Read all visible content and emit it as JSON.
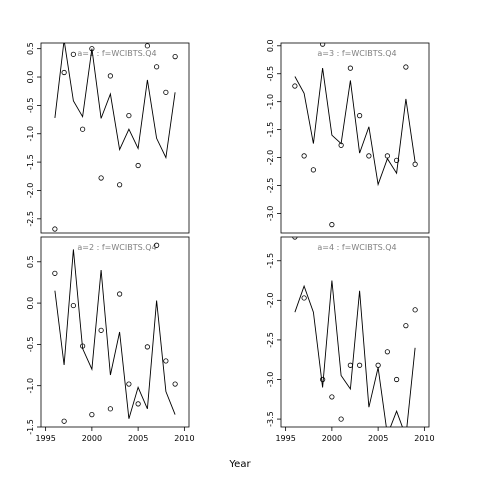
{
  "chart_data": {
    "type": "line",
    "xlabel": "Year",
    "xlim": [
      1994.5,
      2010.5
    ],
    "xticks": [
      1995,
      2000,
      2005,
      2010
    ],
    "panels": [
      {
        "label": "a=1  :  f=WCIBTS.Q4",
        "ylim": [
          -2.75,
          0.6
        ],
        "yticks": [
          -2.5,
          -2.0,
          -1.5,
          -1.0,
          -0.5,
          0.0,
          0.5
        ],
        "ytick_labels": [
          "-2.5",
          "-2.0",
          "-1.5",
          "-1.0",
          "-0.5",
          "0.0",
          "0.5"
        ],
        "years": [
          1996,
          1997,
          1998,
          1999,
          2000,
          2001,
          2002,
          2003,
          2004,
          2005,
          2006,
          2007,
          2008,
          2009
        ],
        "fitted": [
          -0.72,
          0.65,
          -0.42,
          -0.7,
          0.5,
          -0.73,
          -0.3,
          -1.28,
          -0.92,
          -1.26,
          -0.05,
          -1.08,
          -1.42,
          -0.27
        ],
        "observed": [
          -2.68,
          0.08,
          0.4,
          -0.92,
          0.5,
          -1.78,
          0.02,
          -1.9,
          -0.68,
          -1.56,
          0.55,
          0.18,
          -0.27,
          0.36
        ]
      },
      {
        "label": "a=2  :  f=WCIBTS.Q4",
        "ylim": [
          -1.5,
          0.8
        ],
        "yticks": [
          -1.5,
          -1.0,
          -0.5,
          0.0,
          0.5
        ],
        "ytick_labels": [
          "-1.5",
          "-1.0",
          "-0.5",
          "0.0",
          "0.5"
        ],
        "years": [
          1996,
          1997,
          1998,
          1999,
          2000,
          2001,
          2002,
          2003,
          2004,
          2005,
          2006,
          2007,
          2008,
          2009
        ],
        "fitted": [
          0.15,
          -0.75,
          0.65,
          -0.55,
          -0.8,
          0.4,
          -0.87,
          -0.35,
          -1.4,
          -1.02,
          -1.28,
          0.03,
          -1.07,
          -1.35
        ],
        "observed": [
          0.36,
          -1.43,
          -0.03,
          -0.52,
          -1.35,
          -0.33,
          -1.28,
          0.11,
          -0.98,
          -1.22,
          -0.53,
          0.7,
          -0.7,
          -0.98
        ]
      },
      {
        "label": "a=3  :  f=WCIBTS.Q4",
        "ylim": [
          -3.35,
          0.05
        ],
        "yticks": [
          -3.0,
          -2.5,
          -2.0,
          -1.5,
          -1.0,
          -0.5,
          0.0
        ],
        "ytick_labels": [
          "-3.0",
          "-2.5",
          "-2.0",
          "-1.5",
          "-1.0",
          "-0.5",
          "0.0"
        ],
        "years": [
          1996,
          1997,
          1998,
          1999,
          2000,
          2001,
          2002,
          2003,
          2004,
          2005,
          2006,
          2007,
          2008,
          2009
        ],
        "fitted": [
          -0.55,
          -0.85,
          -1.75,
          -0.4,
          -1.6,
          -1.75,
          -0.62,
          -1.92,
          -1.45,
          -2.48,
          -2.02,
          -2.28,
          -0.95,
          -2.08
        ],
        "observed": [
          -0.72,
          -1.97,
          -2.22,
          0.03,
          -3.2,
          -1.78,
          -0.4,
          -1.25,
          -1.97,
          null,
          -1.97,
          -2.05,
          -0.38,
          -2.12
        ]
      },
      {
        "label": "a=4  :  f=WCIBTS.Q4",
        "ylim": [
          -3.6,
          -1.2
        ],
        "yticks": [
          -3.5,
          -3.0,
          -2.5,
          -2.0,
          -1.5
        ],
        "ytick_labels": [
          "-3.5",
          "-3.0",
          "-2.5",
          "-2.0",
          "-1.5"
        ],
        "years": [
          1996,
          1997,
          1998,
          1999,
          2000,
          2001,
          2002,
          2003,
          2004,
          2005,
          2006,
          2007,
          2008,
          2009
        ],
        "fitted": [
          -2.15,
          -1.82,
          -2.15,
          -3.1,
          -1.75,
          -2.95,
          -3.12,
          -1.88,
          -3.35,
          -2.85,
          -3.7,
          -3.4,
          -3.72,
          -2.6
        ],
        "observed": [
          -1.2,
          -1.97,
          null,
          -3.0,
          -3.22,
          -3.5,
          -2.82,
          -2.82,
          null,
          -2.82,
          -2.65,
          -3.0,
          -2.32,
          -2.12
        ]
      }
    ]
  }
}
